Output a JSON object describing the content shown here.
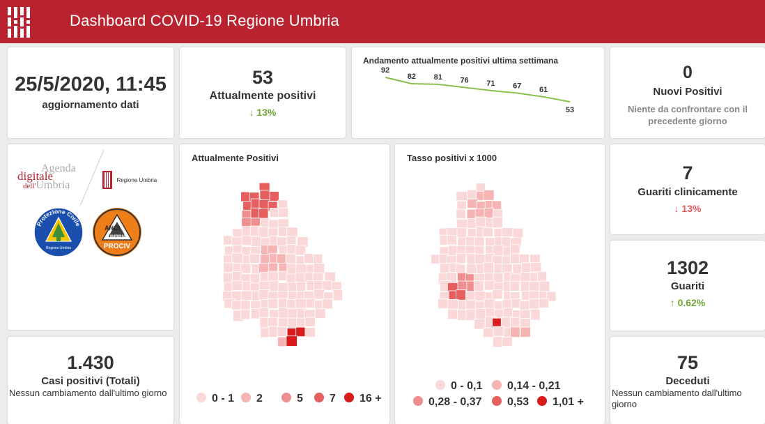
{
  "header": {
    "title": "Dashboard COVID-19 Regione Umbria"
  },
  "update": {
    "datetime": "25/5/2020, 11:45",
    "label": "aggiornamento dati"
  },
  "attualmente": {
    "value": "53",
    "label": "Attualmente positivi",
    "change": "13%"
  },
  "trend": {
    "title": "Andamento attualmente positivi ultima settimana",
    "color": "#8bbf4d",
    "chart_data": {
      "type": "line",
      "title": "Andamento attualmente positivi ultima settimana",
      "values": [
        92,
        82,
        81,
        76,
        71,
        67,
        61,
        53
      ],
      "xlabel": "",
      "ylabel": ""
    }
  },
  "nuovi": {
    "value": "0",
    "label": "Nuovi Positivi",
    "note": "Niente da confrontare con il precedente giorno"
  },
  "logos": {
    "agenda_line1": "Agenda",
    "agenda_line2": "digitale",
    "agenda_line3a": "dell'",
    "agenda_line3b": "Umbria",
    "regione": "Regione Umbria",
    "pc_ring": "Protezione Civile",
    "pc_bottom": "Regione Umbria",
    "anci_1": "ANCI",
    "anci_2": "UMBRIA",
    "anci_3": "PROCIV"
  },
  "map1": {
    "title": "Attualmente Positivi",
    "legend": [
      {
        "label": "0 - 1",
        "color": "#fbd8d8"
      },
      {
        "label": "2",
        "color": "#f6b4b4"
      },
      {
        "label": "5",
        "color": "#ef8e8e"
      },
      {
        "label": "7",
        "color": "#e65e5e"
      },
      {
        "label": "16 +",
        "color": "#d81b1b"
      }
    ]
  },
  "map2": {
    "title": "Tasso positivi x 1000",
    "legend": [
      {
        "label": "0 - 0,1",
        "color": "#fbd8d8"
      },
      {
        "label": "0,14 - 0,21",
        "color": "#f6b4b4"
      },
      {
        "label": "0,28 - 0,37",
        "color": "#ef8e8e"
      },
      {
        "label": "0,53",
        "color": "#e65e5e"
      },
      {
        "label": "1,01 +",
        "color": "#d81b1b"
      }
    ]
  },
  "guariti_clin": {
    "value": "7",
    "label": "Guariti clinicamente",
    "change": "13%"
  },
  "guariti": {
    "value": "1302",
    "label": "Guariti",
    "change": "0.62%"
  },
  "casi": {
    "value": "1.430",
    "label": "Casi positivi (Totali)",
    "note": "Nessun cambiamento dall'ultimo giorno"
  },
  "deceduti": {
    "value": "75",
    "label": "Deceduti",
    "note": "Nessun cambiamento dall'ultimo giorno"
  },
  "colors": {
    "brand": "#b8232f",
    "green": "#6fa832",
    "red": "#e0595c"
  }
}
